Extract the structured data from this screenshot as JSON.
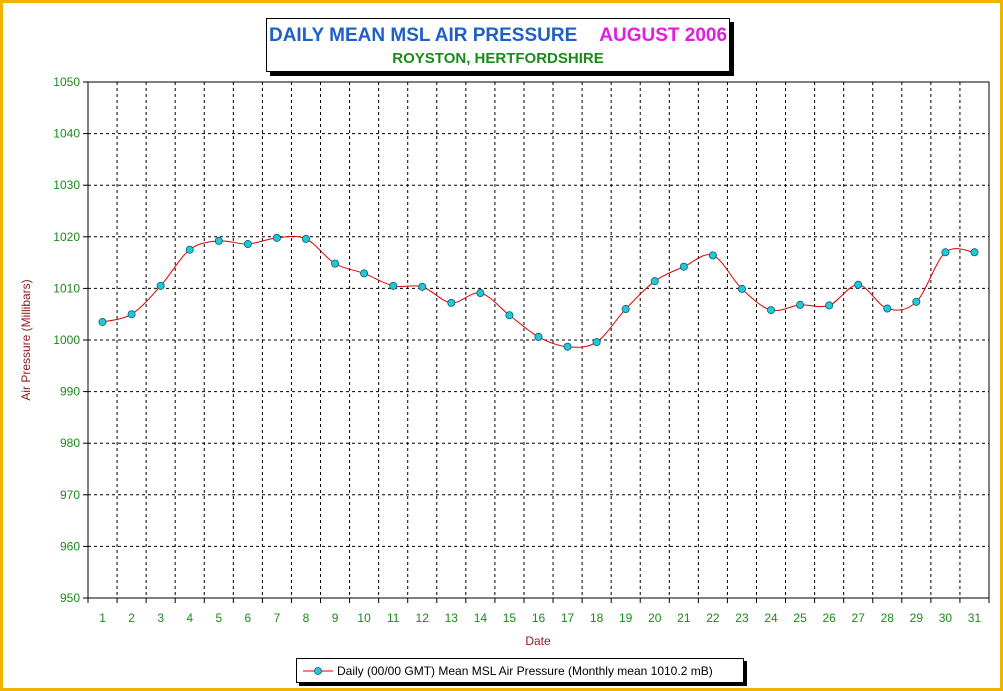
{
  "chart_data": {
    "type": "line",
    "title": "DAILY MEAN MSL AIR PRESSURE",
    "title_month": "AUGUST 2006",
    "subtitle": "ROYSTON, HERTFORDSHIRE",
    "xlabel": "Date",
    "ylabel": "Air Pressure (Millibars)",
    "ylim": [
      950,
      1050
    ],
    "ystep": 10,
    "grid": true,
    "legend_position": "bottom",
    "categories": [
      "1",
      "2",
      "3",
      "4",
      "5",
      "6",
      "7",
      "8",
      "9",
      "10",
      "11",
      "12",
      "13",
      "14",
      "15",
      "16",
      "17",
      "18",
      "19",
      "20",
      "21",
      "22",
      "23",
      "24",
      "25",
      "26",
      "27",
      "28",
      "29",
      "30",
      "31"
    ],
    "series": [
      {
        "name": "Daily (00/00 GMT) Mean MSL Air Pressure (Monthly mean 1010.2 mB)",
        "values": [
          1003.5,
          1005.0,
          1010.5,
          1017.5,
          1019.2,
          1018.6,
          1019.8,
          1019.6,
          1014.8,
          1012.9,
          1010.5,
          1010.3,
          1007.2,
          1009.1,
          1004.8,
          1000.6,
          998.7,
          999.6,
          1006.0,
          1011.4,
          1014.2,
          1016.4,
          1009.9,
          1005.8,
          1006.8,
          1006.7,
          1010.7,
          1006.1,
          1007.4,
          1017.0,
          1017.0
        ]
      }
    ]
  },
  "colors": {
    "frame_border": "#f0b400",
    "title_main": "#1f5fc8",
    "title_month": "#e01ee0",
    "subtitle": "#1a8a1a",
    "tick_labels": "#1a8a1a",
    "axis_titles": "#8b1a1a",
    "line": "#dd0000",
    "marker_fill": "#20c8d8",
    "marker_stroke": "#006070"
  },
  "legend": {
    "label": "Daily (00/00 GMT) Mean MSL Air Pressure (Monthly mean 1010.2 mB)",
    "marker": "cyan-circle-on-red-line"
  }
}
